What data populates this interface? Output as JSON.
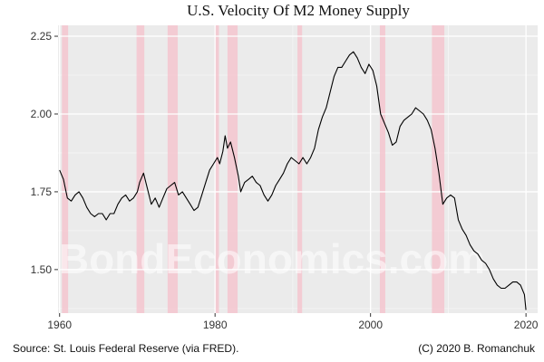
{
  "chart_data": {
    "type": "line",
    "title": "U.S. Velocity Of M2 Money Supply",
    "xlabel": "",
    "ylabel": "",
    "xlim": [
      1959.8,
      2021.5
    ],
    "ylim": [
      1.36,
      2.285
    ],
    "x_ticks": [
      1960,
      1980,
      2000,
      2020
    ],
    "y_ticks": [
      1.5,
      1.75,
      2.0,
      2.25
    ],
    "y_tick_labels": [
      "1.50",
      "1.75",
      "2.00",
      "2.25"
    ],
    "x_minor_ticks": [
      1970,
      1990,
      2010
    ],
    "y_minor_ticks": [
      1.375,
      1.625,
      1.875,
      2.125
    ],
    "grid": true,
    "series": [
      {
        "name": "Velocity of M2",
        "color": "#000000",
        "points": [
          [
            1960.0,
            1.82
          ],
          [
            1960.5,
            1.79
          ],
          [
            1961.0,
            1.73
          ],
          [
            1961.5,
            1.72
          ],
          [
            1962.0,
            1.74
          ],
          [
            1962.5,
            1.75
          ],
          [
            1963.0,
            1.73
          ],
          [
            1963.5,
            1.7
          ],
          [
            1964.0,
            1.68
          ],
          [
            1964.5,
            1.67
          ],
          [
            1965.0,
            1.68
          ],
          [
            1965.5,
            1.68
          ],
          [
            1966.0,
            1.66
          ],
          [
            1966.5,
            1.68
          ],
          [
            1967.0,
            1.68
          ],
          [
            1967.5,
            1.71
          ],
          [
            1968.0,
            1.73
          ],
          [
            1968.5,
            1.74
          ],
          [
            1969.0,
            1.72
          ],
          [
            1969.5,
            1.73
          ],
          [
            1970.0,
            1.75
          ],
          [
            1970.3,
            1.78
          ],
          [
            1970.8,
            1.81
          ],
          [
            1971.3,
            1.76
          ],
          [
            1971.8,
            1.71
          ],
          [
            1972.3,
            1.73
          ],
          [
            1972.8,
            1.7
          ],
          [
            1973.3,
            1.73
          ],
          [
            1973.8,
            1.76
          ],
          [
            1974.3,
            1.77
          ],
          [
            1974.8,
            1.78
          ],
          [
            1975.3,
            1.74
          ],
          [
            1975.8,
            1.75
          ],
          [
            1976.3,
            1.73
          ],
          [
            1976.8,
            1.71
          ],
          [
            1977.3,
            1.69
          ],
          [
            1977.8,
            1.7
          ],
          [
            1978.3,
            1.74
          ],
          [
            1978.8,
            1.78
          ],
          [
            1979.3,
            1.82
          ],
          [
            1979.8,
            1.84
          ],
          [
            1980.3,
            1.86
          ],
          [
            1980.6,
            1.84
          ],
          [
            1981.0,
            1.88
          ],
          [
            1981.3,
            1.93
          ],
          [
            1981.6,
            1.89
          ],
          [
            1982.0,
            1.91
          ],
          [
            1982.5,
            1.86
          ],
          [
            1983.0,
            1.8
          ],
          [
            1983.3,
            1.75
          ],
          [
            1983.8,
            1.78
          ],
          [
            1984.3,
            1.79
          ],
          [
            1984.8,
            1.8
          ],
          [
            1985.3,
            1.78
          ],
          [
            1985.8,
            1.77
          ],
          [
            1986.3,
            1.74
          ],
          [
            1986.8,
            1.72
          ],
          [
            1987.3,
            1.74
          ],
          [
            1987.8,
            1.77
          ],
          [
            1988.3,
            1.79
          ],
          [
            1988.8,
            1.81
          ],
          [
            1989.3,
            1.84
          ],
          [
            1989.8,
            1.86
          ],
          [
            1990.3,
            1.85
          ],
          [
            1990.8,
            1.84
          ],
          [
            1991.3,
            1.86
          ],
          [
            1991.8,
            1.84
          ],
          [
            1992.3,
            1.86
          ],
          [
            1992.8,
            1.89
          ],
          [
            1993.3,
            1.95
          ],
          [
            1993.8,
            1.99
          ],
          [
            1994.3,
            2.02
          ],
          [
            1994.8,
            2.07
          ],
          [
            1995.3,
            2.12
          ],
          [
            1995.8,
            2.15
          ],
          [
            1996.3,
            2.15
          ],
          [
            1996.8,
            2.17
          ],
          [
            1997.3,
            2.19
          ],
          [
            1997.8,
            2.2
          ],
          [
            1998.3,
            2.18
          ],
          [
            1998.8,
            2.15
          ],
          [
            1999.3,
            2.13
          ],
          [
            1999.8,
            2.16
          ],
          [
            2000.3,
            2.14
          ],
          [
            2000.8,
            2.09
          ],
          [
            2001.3,
            2.0
          ],
          [
            2001.8,
            1.97
          ],
          [
            2002.3,
            1.94
          ],
          [
            2002.8,
            1.9
          ],
          [
            2003.3,
            1.91
          ],
          [
            2003.8,
            1.96
          ],
          [
            2004.3,
            1.98
          ],
          [
            2004.8,
            1.99
          ],
          [
            2005.3,
            2.0
          ],
          [
            2005.8,
            2.02
          ],
          [
            2006.3,
            2.01
          ],
          [
            2006.8,
            2.0
          ],
          [
            2007.3,
            1.98
          ],
          [
            2007.8,
            1.95
          ],
          [
            2008.3,
            1.89
          ],
          [
            2008.8,
            1.81
          ],
          [
            2009.3,
            1.71
          ],
          [
            2009.8,
            1.73
          ],
          [
            2010.3,
            1.74
          ],
          [
            2010.8,
            1.73
          ],
          [
            2011.3,
            1.66
          ],
          [
            2011.8,
            1.63
          ],
          [
            2012.3,
            1.61
          ],
          [
            2012.8,
            1.58
          ],
          [
            2013.3,
            1.56
          ],
          [
            2013.8,
            1.55
          ],
          [
            2014.3,
            1.53
          ],
          [
            2014.8,
            1.52
          ],
          [
            2015.3,
            1.5
          ],
          [
            2015.8,
            1.47
          ],
          [
            2016.3,
            1.45
          ],
          [
            2016.8,
            1.44
          ],
          [
            2017.3,
            1.44
          ],
          [
            2017.8,
            1.45
          ],
          [
            2018.3,
            1.46
          ],
          [
            2018.8,
            1.46
          ],
          [
            2019.3,
            1.45
          ],
          [
            2019.8,
            1.42
          ],
          [
            2020.0,
            1.37
          ]
        ]
      }
    ],
    "recessions": [
      {
        "start": 1960.3,
        "end": 1961.1
      },
      {
        "start": 1969.9,
        "end": 1970.9
      },
      {
        "start": 1973.9,
        "end": 1975.2
      },
      {
        "start": 1980.0,
        "end": 1980.5
      },
      {
        "start": 1981.6,
        "end": 1982.9
      },
      {
        "start": 1990.6,
        "end": 1991.2
      },
      {
        "start": 2001.2,
        "end": 2001.9
      },
      {
        "start": 2007.9,
        "end": 2009.5
      }
    ],
    "annotations": {
      "source": "Source: St. Louis Federal Reserve (via FRED).",
      "copyright": "(C) 2020 B. Romanchuk",
      "watermark": "BondEconomics.com"
    },
    "colors": {
      "panel_background": "#ebebeb",
      "grid_major": "#ffffff",
      "recession_band": "#f5c6cf",
      "line": "#000000"
    }
  }
}
